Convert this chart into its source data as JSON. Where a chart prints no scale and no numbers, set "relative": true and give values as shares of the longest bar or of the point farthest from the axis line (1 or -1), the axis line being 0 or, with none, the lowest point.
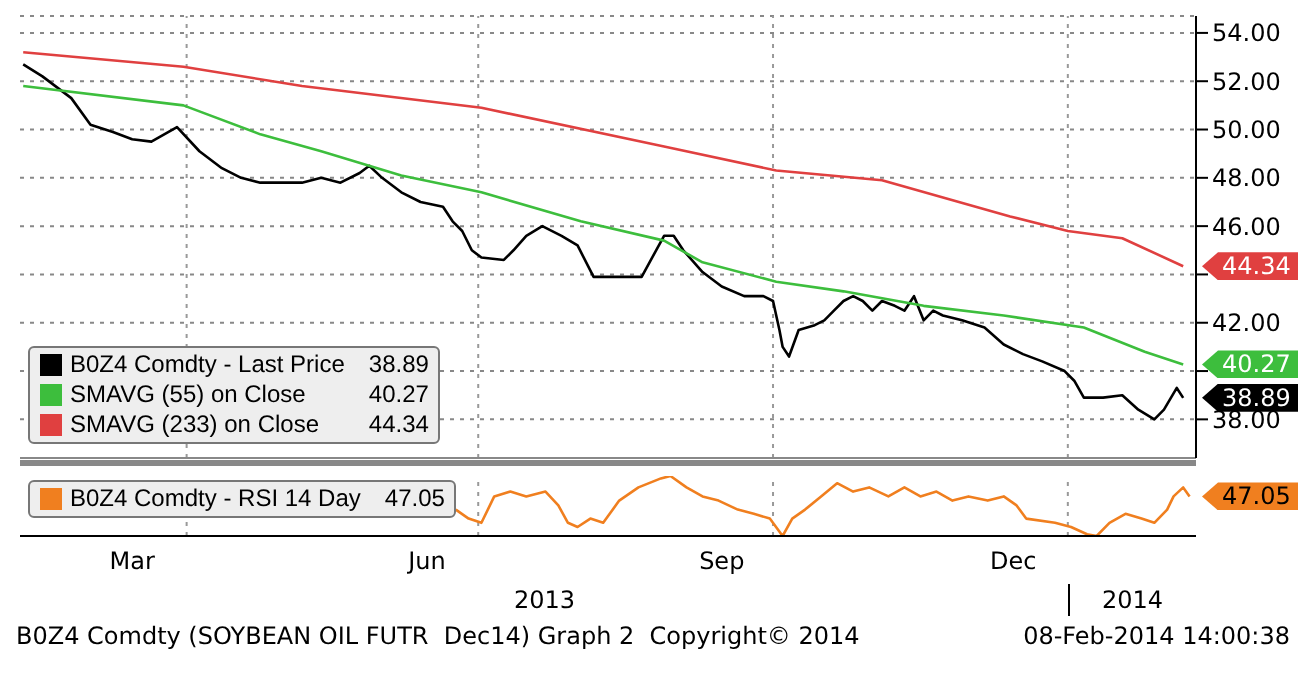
{
  "chart_data": [
    {
      "type": "line",
      "xlim": [
        "2013-02-08",
        "2014-02-10"
      ],
      "ylim": [
        36.4,
        54.7
      ],
      "yticks": [
        {
          "value": 38,
          "label": "38.00"
        },
        {
          "value": 40,
          "label": null
        },
        {
          "value": 42,
          "label": "42.00"
        },
        {
          "value": 44,
          "label": null
        },
        {
          "value": 46,
          "label": "46.00"
        },
        {
          "value": 48,
          "label": "48.00"
        },
        {
          "value": 50,
          "label": "50.00"
        },
        {
          "value": 52,
          "label": "52.00"
        },
        {
          "value": 54,
          "label": "54.00"
        }
      ],
      "tick_labels": "y",
      "grid": "y",
      "legend": "bottom left",
      "ref_lines": [
        {
          "axis": "x",
          "value": "2013-04-01",
          "color": "#999999",
          "line_style": "dotted"
        },
        {
          "axis": "x",
          "value": "2013-07-01",
          "color": "#999999",
          "line_style": "dotted"
        },
        {
          "axis": "x",
          "value": "2013-10-01",
          "color": "#999999",
          "line_style": "dotted"
        },
        {
          "axis": "x",
          "value": "2014-01-01",
          "color": "#999999",
          "line_style": "dotted"
        }
      ],
      "series": [
        {
          "name": "B0Z4 Comdty - Last Price",
          "color": "#000000",
          "x": [
            "2013-02-09",
            "2013-02-15",
            "2013-02-24",
            "2013-03-02",
            "2013-03-09",
            "2013-03-15",
            "2013-03-21",
            "2013-03-29",
            "2013-04-05",
            "2013-04-12",
            "2013-04-18",
            "2013-04-24",
            "2013-04-30",
            "2013-05-07",
            "2013-05-13",
            "2013-05-19",
            "2013-05-25",
            "2013-05-28",
            "2013-06-01",
            "2013-06-07",
            "2013-06-13",
            "2013-06-20",
            "2013-06-23",
            "2013-06-26",
            "2013-06-29",
            "2013-07-02",
            "2013-07-09",
            "2013-07-12",
            "2013-07-16",
            "2013-07-21",
            "2013-07-27",
            "2013-08-01",
            "2013-08-06",
            "2013-08-21",
            "2013-08-28",
            "2013-08-31",
            "2013-09-03",
            "2013-09-09",
            "2013-09-15",
            "2013-09-22",
            "2013-09-28",
            "2013-10-01",
            "2013-10-03",
            "2013-10-04",
            "2013-10-06",
            "2013-10-09",
            "2013-10-14",
            "2013-10-17",
            "2013-10-20",
            "2013-10-23",
            "2013-10-26",
            "2013-10-29",
            "2013-11-01",
            "2013-11-04",
            "2013-11-08",
            "2013-11-11",
            "2013-11-14",
            "2013-11-17",
            "2013-11-20",
            "2013-11-23",
            "2013-11-29",
            "2013-12-06",
            "2013-12-12",
            "2013-12-18",
            "2013-12-24",
            "2013-12-31",
            "2014-01-03",
            "2014-01-06",
            "2014-01-12",
            "2014-01-18",
            "2014-01-23",
            "2014-01-28",
            "2014-01-31",
            "2014-02-04",
            "2014-02-06"
          ],
          "values": [
            52.7,
            52.2,
            51.3,
            50.2,
            49.9,
            49.6,
            49.5,
            50.1,
            49.1,
            48.4,
            48.0,
            47.8,
            47.8,
            47.8,
            48.0,
            47.8,
            48.2,
            48.5,
            48.0,
            47.4,
            47.0,
            46.8,
            46.2,
            45.8,
            45.0,
            44.7,
            44.6,
            45.0,
            45.6,
            46.0,
            45.6,
            45.2,
            43.9,
            43.9,
            45.6,
            45.6,
            45.0,
            44.1,
            43.5,
            43.1,
            43.1,
            42.9,
            41.7,
            41.0,
            40.6,
            41.7,
            41.9,
            42.1,
            42.5,
            42.9,
            43.1,
            42.9,
            42.5,
            42.9,
            42.7,
            42.5,
            43.1,
            42.1,
            42.5,
            42.3,
            42.1,
            41.8,
            41.1,
            40.7,
            40.4,
            40.0,
            39.6,
            38.9,
            38.9,
            39.0,
            38.4,
            38.0,
            38.4,
            39.3,
            38.89
          ],
          "value_labels": [
            null,
            null,
            null,
            null,
            null,
            null,
            null,
            null,
            null,
            null,
            null,
            null,
            null,
            null,
            null,
            null,
            null,
            null,
            null,
            null,
            null,
            null,
            null,
            null,
            null,
            null,
            null,
            null,
            null,
            null,
            null,
            null,
            null,
            null,
            null,
            null,
            null,
            null,
            null,
            null,
            null,
            null,
            null,
            null,
            null,
            null,
            null,
            null,
            null,
            null,
            null,
            null,
            null,
            null,
            null,
            null,
            null,
            null,
            null,
            null,
            null,
            null,
            null,
            null,
            null,
            null,
            null,
            null,
            null,
            null,
            null,
            null,
            null,
            null,
            "38.89"
          ]
        },
        {
          "name": "SMAVG (55) on Close",
          "color": "#3dbe3d",
          "x": [
            "2013-02-09",
            "2013-03-31",
            "2013-04-24",
            "2013-05-13",
            "2013-06-07",
            "2013-07-02",
            "2013-08-02",
            "2013-08-28",
            "2013-09-09",
            "2013-10-02",
            "2013-10-23",
            "2013-11-17",
            "2013-12-12",
            "2014-01-06",
            "2014-01-25",
            "2014-02-06"
          ],
          "values": [
            51.8,
            51.0,
            49.8,
            49.1,
            48.1,
            47.4,
            46.2,
            45.4,
            44.5,
            43.7,
            43.3,
            42.7,
            42.3,
            41.8,
            40.8,
            40.27
          ],
          "value_labels": [
            null,
            null,
            null,
            null,
            null,
            null,
            null,
            null,
            null,
            null,
            null,
            null,
            null,
            null,
            null,
            "40.27"
          ]
        },
        {
          "name": "SMAVG (233) on Close",
          "color": "#e04040",
          "x": [
            "2013-02-09",
            "2013-03-31",
            "2013-05-07",
            "2013-07-02",
            "2013-08-28",
            "2013-10-02",
            "2013-11-04",
            "2013-12-14",
            "2014-01-01",
            "2014-01-18",
            "2014-02-06"
          ],
          "values": [
            53.2,
            52.6,
            51.8,
            50.9,
            49.3,
            48.3,
            47.9,
            46.4,
            45.8,
            45.5,
            44.34
          ],
          "value_labels": [
            null,
            null,
            null,
            null,
            null,
            null,
            null,
            null,
            null,
            null,
            "44.34"
          ]
        }
      ]
    },
    {
      "type": "line",
      "relative": true,
      "xlim": [
        "2013-02-08",
        "2014-02-10"
      ],
      "legend": "left",
      "xticks": [
        {
          "value": "2013-03-15",
          "label": "Mar"
        },
        {
          "value": "2013-06-15",
          "label": "Jun"
        },
        {
          "value": "2013-09-15",
          "label": "Sep"
        },
        {
          "value": "2013-12-15",
          "label": "Dec"
        }
      ],
      "ref_lines": [
        {
          "axis": "x",
          "value": "2013-04-01",
          "color": "#999999",
          "line_style": "dotted"
        },
        {
          "axis": "x",
          "value": "2013-07-01",
          "color": "#999999",
          "line_style": "dotted"
        },
        {
          "axis": "x",
          "value": "2013-10-01",
          "color": "#999999",
          "line_style": "dotted"
        },
        {
          "axis": "x",
          "value": "2014-01-01",
          "color": "#999999",
          "line_style": "dotted"
        }
      ],
      "annotations": [
        "47.05",
        "2013",
        "2014",
        "B0Z4 Comdty (SOYBEAN OIL FUTR  Dec14) Graph 2  Copyright© 2014",
        "08-Feb-2014 14:00:38"
      ],
      "series": [
        {
          "name": "B0Z4 Comdty - RSI 14 Day",
          "color": "#f07f1f",
          "x": [
            "2013-06-24",
            "2013-06-28",
            "2013-07-02",
            "2013-07-06",
            "2013-07-11",
            "2013-07-16",
            "2013-07-22",
            "2013-07-26",
            "2013-07-29",
            "2013-08-01",
            "2013-08-05",
            "2013-08-09",
            "2013-08-14",
            "2013-08-20",
            "2013-08-27",
            "2013-08-30",
            "2013-09-04",
            "2013-09-09",
            "2013-09-14",
            "2013-09-20",
            "2013-09-25",
            "2013-09-30",
            "2013-10-04",
            "2013-10-07",
            "2013-10-11",
            "2013-10-16",
            "2013-10-21",
            "2013-10-26",
            "2013-10-31",
            "2013-11-06",
            "2013-11-11",
            "2013-11-16",
            "2013-11-21",
            "2013-11-26",
            "2013-12-01",
            "2013-12-07",
            "2013-12-12",
            "2013-12-16",
            "2013-12-19",
            "2013-12-28",
            "2014-01-02",
            "2014-01-07",
            "2014-01-10",
            "2014-01-14",
            "2014-01-19",
            "2014-01-24",
            "2014-01-28",
            "2014-02-01",
            "2014-02-03",
            "2014-02-06",
            "2014-02-08"
          ],
          "values": [
            0.44,
            0.29,
            0.22,
            0.66,
            0.74,
            0.66,
            0.74,
            0.51,
            0.22,
            0.15,
            0.29,
            0.22,
            0.59,
            0.81,
            0.96,
            1,
            0.81,
            0.66,
            0.59,
            0.44,
            0.37,
            0.29,
            0,
            0.29,
            0.44,
            0.66,
            0.88,
            0.74,
            0.81,
            0.66,
            0.81,
            0.66,
            0.74,
            0.59,
            0.66,
            0.59,
            0.66,
            0.51,
            0.29,
            0.22,
            0.15,
            0.03,
            0,
            0.22,
            0.37,
            0.29,
            0.22,
            0.44,
            0.66,
            0.81,
            0.66
          ]
        }
      ]
    }
  ]
}
